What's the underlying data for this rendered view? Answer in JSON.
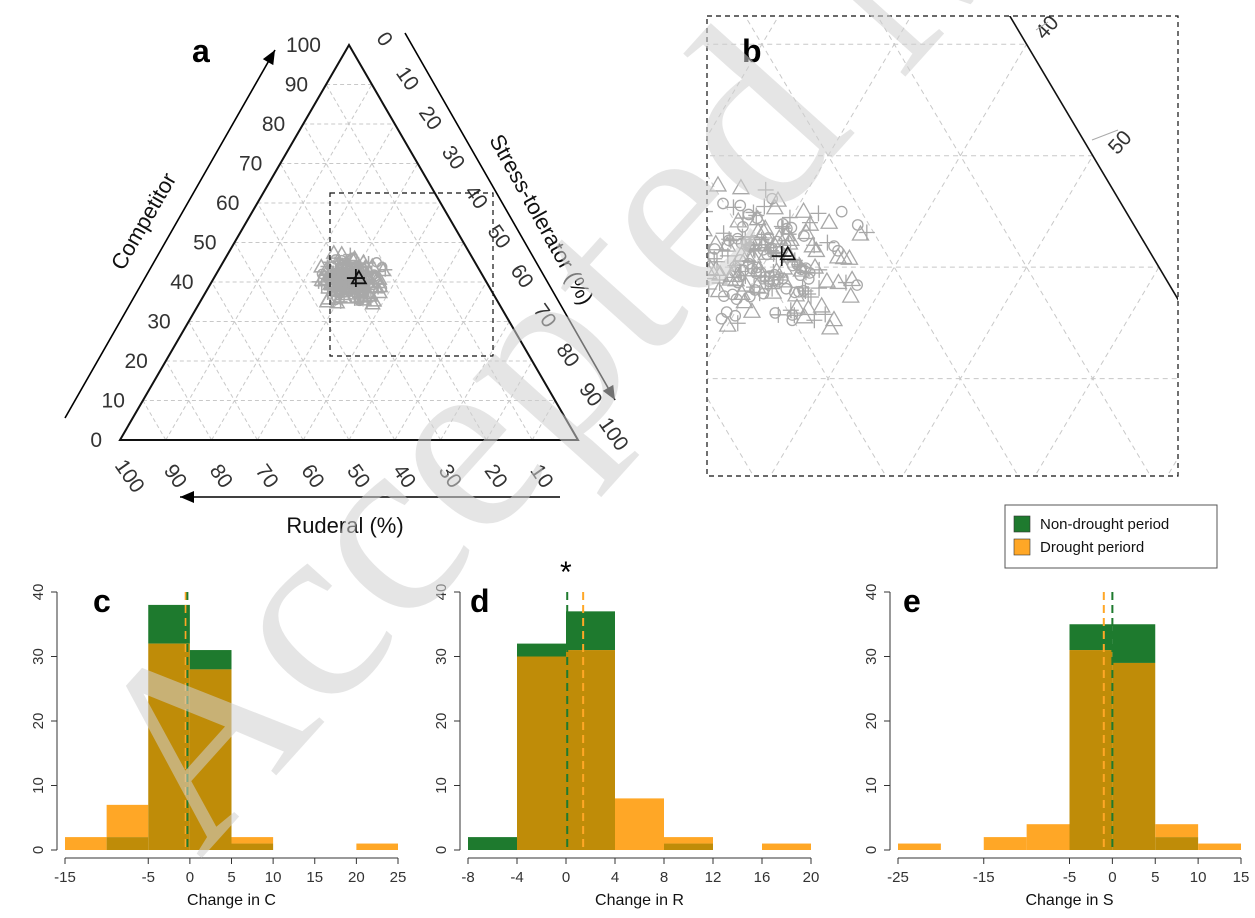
{
  "panel_labels": {
    "a": "a",
    "b": "b",
    "c": "c",
    "d": "d",
    "e": "e"
  },
  "watermark": "Accepted Manuscript",
  "significance_marker": "*",
  "legend": {
    "non_drought": "Non-drought period",
    "drought": "Drought periord"
  },
  "colors": {
    "non_drought": "#1e7a2e",
    "drought": "#ffa726",
    "overlap": "#bf8c08",
    "points": "#a8a8a8",
    "centroid": "#111111",
    "grid": "#c8c8c8"
  },
  "chart_data": [
    {
      "panel": "a",
      "type": "scatter",
      "subtype": "ternary",
      "axes": {
        "competitor": {
          "label": "Competitor",
          "ticks": [
            "0",
            "10",
            "20",
            "30",
            "40",
            "50",
            "60",
            "70",
            "80",
            "90",
            "100"
          ]
        },
        "stress_tolerator": {
          "label": "Stress-tolerator (%)",
          "ticks": [
            "0",
            "10",
            "20",
            "30",
            "40",
            "50",
            "60",
            "70",
            "80",
            "90",
            "100"
          ]
        },
        "ruderal": {
          "label": "Ruderal (%)",
          "ticks": [
            "10",
            "20",
            "30",
            "40",
            "50",
            "60",
            "70",
            "80",
            "90",
            "100"
          ]
        }
      },
      "markers": [
        "plus",
        "triangle",
        "circle"
      ],
      "centroid_CSR": [
        41,
        31,
        28
      ],
      "points_CSR_approx": "~300 points clustered at C 30-55%, S 18-45%, R 20-45%",
      "zoom_box": "dashed rectangle linked to panel b",
      "grid": true
    },
    {
      "panel": "b",
      "type": "scatter",
      "subtype": "ternary-zoom",
      "ticks": [
        "40",
        "50"
      ],
      "centroid_CSR": [
        41,
        31,
        28
      ],
      "grid": true
    },
    {
      "panel": "c",
      "type": "bar",
      "subtype": "overlaid histogram",
      "xlabel": "Change in C",
      "x_ticks": [
        "-15",
        "-5",
        "0",
        "5",
        "10",
        "15",
        "20",
        "25"
      ],
      "y_ticks": [
        "0",
        "10",
        "20",
        "30",
        "40"
      ],
      "xlim": [
        -15,
        25
      ],
      "ylim": [
        0,
        40
      ],
      "bin_edges": [
        -15,
        -10,
        -5,
        0,
        5,
        10,
        15,
        20,
        25
      ],
      "series": [
        {
          "name": "Non-drought period",
          "values": [
            0,
            2,
            38,
            31,
            1,
            0,
            0,
            0
          ],
          "mean": -0.3
        },
        {
          "name": "Drought periord",
          "values": [
            2,
            7,
            32,
            28,
            2,
            0,
            0,
            1
          ],
          "mean": -0.5
        }
      ]
    },
    {
      "panel": "d",
      "type": "bar",
      "subtype": "overlaid histogram",
      "xlabel": "Change in R",
      "x_ticks": [
        "-8",
        "-4",
        "0",
        "4",
        "8",
        "12",
        "16",
        "20"
      ],
      "y_ticks": [
        "0",
        "10",
        "20",
        "30",
        "40"
      ],
      "xlim": [
        -8,
        20
      ],
      "ylim": [
        0,
        40
      ],
      "bin_edges": [
        -8,
        -4,
        0,
        4,
        8,
        12,
        16,
        20
      ],
      "series": [
        {
          "name": "Non-drought period",
          "values": [
            2,
            32,
            37,
            0,
            1,
            0,
            0
          ],
          "mean": 0.1
        },
        {
          "name": "Drought periord",
          "values": [
            0,
            30,
            31,
            8,
            2,
            0,
            1
          ],
          "mean": 1.4
        }
      ]
    },
    {
      "panel": "e",
      "type": "bar",
      "subtype": "overlaid histogram",
      "xlabel": "Change in S",
      "x_ticks": [
        "-25",
        "-15",
        "-5",
        "0",
        "5",
        "10",
        "15"
      ],
      "y_ticks": [
        "0",
        "10",
        "20",
        "30",
        "40"
      ],
      "xlim": [
        -25,
        15
      ],
      "ylim": [
        0,
        40
      ],
      "bin_edges": [
        -25,
        -20,
        -15,
        -10,
        -5,
        0,
        5,
        10,
        15
      ],
      "series": [
        {
          "name": "Non-drought period",
          "values": [
            0,
            0,
            0,
            0,
            35,
            35,
            2,
            0
          ],
          "mean": 0.0
        },
        {
          "name": "Drought periord",
          "values": [
            1,
            0,
            2,
            4,
            31,
            29,
            4,
            1
          ],
          "mean": -1.0
        }
      ]
    }
  ]
}
